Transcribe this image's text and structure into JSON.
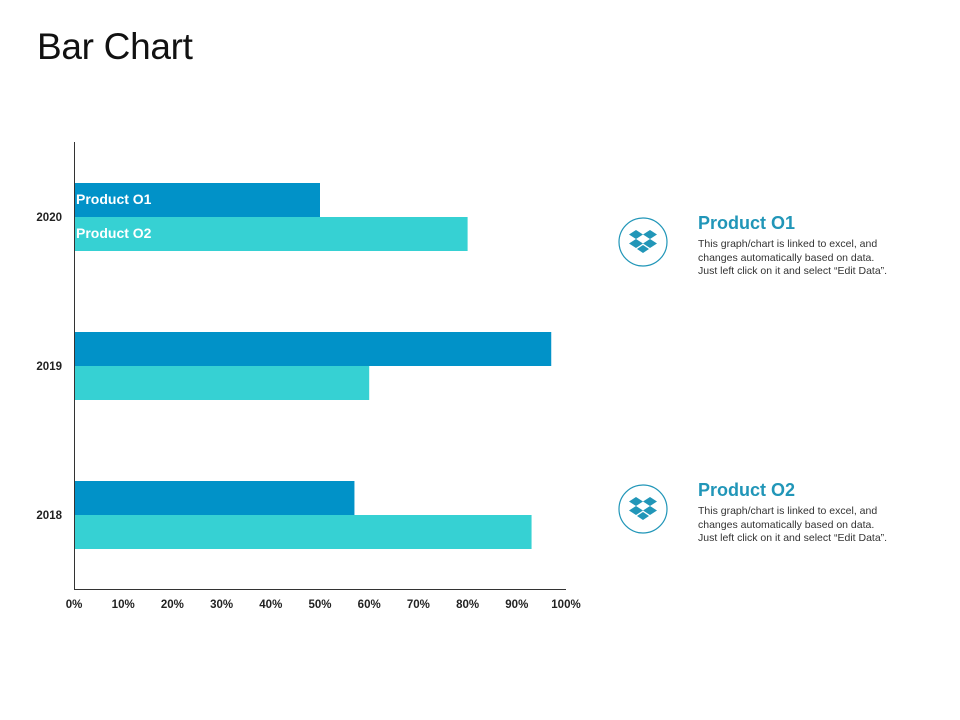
{
  "page": {
    "title": "Bar Chart"
  },
  "chart_data": {
    "type": "bar",
    "orientation": "horizontal",
    "categories": [
      "2020",
      "2019",
      "2018"
    ],
    "series": [
      {
        "name": "Product O1",
        "values": [
          50,
          97,
          57
        ]
      },
      {
        "name": "Product O2",
        "values": [
          80,
          60,
          93
        ]
      }
    ],
    "xlim": [
      0,
      100
    ],
    "x_ticks": [
      "0%",
      "10%",
      "20%",
      "30%",
      "40%",
      "50%",
      "60%",
      "70%",
      "80%",
      "90%",
      "100%"
    ],
    "grid": false,
    "colors": [
      "#0192c8",
      "#36d1d3"
    ]
  },
  "legend_panel": {
    "items": [
      {
        "title": "Product O1",
        "lines": [
          "This graph/chart is linked to excel, and",
          "changes automatically based on data.",
          "Just left click on it and select “Edit Data”."
        ],
        "icon": "dropbox-icon"
      },
      {
        "title": "Product O2",
        "lines": [
          "This graph/chart is linked to excel, and",
          "changes automatically based on data.",
          "Just left click on it and select “Edit Data”."
        ],
        "icon": "dropbox-icon"
      }
    ],
    "accent_color": "#2196b8"
  }
}
